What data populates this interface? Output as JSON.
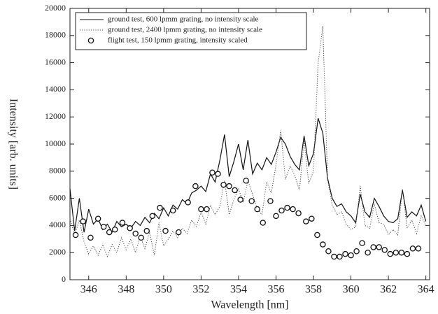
{
  "chart_data": {
    "type": "line",
    "xlabel": "Wavelength [nm]",
    "ylabel": "Intensity [arb. units]",
    "xlim": [
      345,
      364.2
    ],
    "ylim": [
      0,
      20000
    ],
    "xticks": [
      346,
      348,
      350,
      352,
      354,
      356,
      358,
      360,
      362,
      364
    ],
    "yticks": [
      0,
      2000,
      4000,
      6000,
      8000,
      10000,
      12000,
      14000,
      16000,
      18000,
      20000
    ],
    "legend": "upper left",
    "series": [
      {
        "name": "ground test, 600 lpmm grating, no intensity scale",
        "style": "solid",
        "color": "#111111",
        "x": [
          345,
          345.25,
          345.5,
          345.75,
          346,
          346.25,
          346.5,
          346.75,
          347,
          347.25,
          347.5,
          347.75,
          348,
          348.25,
          348.5,
          348.75,
          349,
          349.25,
          349.5,
          349.75,
          350,
          350.25,
          350.5,
          350.75,
          351,
          351.25,
          351.5,
          351.75,
          352,
          352.25,
          352.5,
          352.75,
          353,
          353.25,
          353.5,
          353.75,
          354,
          354.25,
          354.5,
          354.75,
          355,
          355.25,
          355.5,
          355.75,
          356,
          356.25,
          356.5,
          356.75,
          357,
          357.25,
          357.5,
          357.75,
          358,
          358.25,
          358.5,
          358.75,
          359,
          359.25,
          359.5,
          359.75,
          360,
          360.25,
          360.5,
          360.75,
          361,
          361.25,
          361.5,
          361.75,
          362,
          362.25,
          362.5,
          362.75,
          363,
          363.25,
          363.5,
          363.75,
          364
        ],
        "values": [
          6700,
          3600,
          6000,
          3500,
          5200,
          4100,
          4500,
          3700,
          4100,
          3500,
          4300,
          3900,
          4100,
          3800,
          4300,
          4000,
          4600,
          4200,
          4900,
          4500,
          5300,
          4700,
          5500,
          5200,
          5900,
          5600,
          6400,
          6600,
          6900,
          6500,
          7800,
          7200,
          8800,
          10700,
          7600,
          8700,
          10000,
          8100,
          10300,
          7800,
          8600,
          8100,
          9000,
          8500,
          9400,
          10500,
          10000,
          9100,
          8500,
          8100,
          10600,
          8400,
          9300,
          11900,
          10800,
          7500,
          6000,
          5400,
          5600,
          5000,
          4700,
          4200,
          6300,
          5000,
          4600,
          6000,
          5400,
          4700,
          4300,
          4200,
          4500,
          6600,
          4600,
          5000,
          4700,
          5500,
          4300
        ]
      },
      {
        "name": "ground test, 2400 lpmm grating, no intensity scale",
        "style": "dotted",
        "color": "#444444",
        "x": [
          345,
          345.25,
          345.5,
          345.75,
          346,
          346.25,
          346.5,
          346.75,
          347,
          347.25,
          347.5,
          347.75,
          348,
          348.25,
          348.5,
          348.75,
          349,
          349.25,
          349.5,
          349.75,
          350,
          350.25,
          350.5,
          350.75,
          351,
          351.25,
          351.5,
          351.75,
          352,
          352.25,
          352.5,
          352.75,
          353,
          353.25,
          353.5,
          353.75,
          354,
          354.25,
          354.5,
          354.75,
          355,
          355.25,
          355.5,
          355.75,
          356,
          356.25,
          356.5,
          356.75,
          357,
          357.25,
          357.5,
          357.75,
          358,
          358.25,
          358.5,
          358.75,
          359,
          359.25,
          359.5,
          359.75,
          360,
          360.25,
          360.5,
          360.75,
          361,
          361.25,
          361.5,
          361.75,
          362,
          362.25,
          362.5,
          362.75,
          363,
          363.25,
          363.5,
          363.75,
          364
        ],
        "values": [
          4500,
          3300,
          4400,
          2800,
          1900,
          2500,
          1800,
          2600,
          1700,
          2600,
          2000,
          3100,
          2200,
          3000,
          2000,
          3200,
          2300,
          3500,
          1800,
          4200,
          2500,
          3000,
          3600,
          3100,
          3800,
          3400,
          4400,
          3900,
          5000,
          4100,
          5500,
          4800,
          5400,
          7300,
          4800,
          5900,
          6700,
          5700,
          7300,
          6300,
          5200,
          4800,
          7200,
          6400,
          8500,
          11000,
          7400,
          8400,
          7700,
          6600,
          10200,
          7100,
          8000,
          16000,
          18700,
          7400,
          5500,
          4800,
          5000,
          4100,
          3700,
          3900,
          6900,
          4000,
          3800,
          5600,
          4200,
          4100,
          3300,
          3700,
          3300,
          6700,
          3800,
          4400,
          3400,
          4700,
          4000
        ]
      },
      {
        "name": "flight test, 150 lpmm grating, intensity scaled",
        "style": "circle",
        "color": "#111111",
        "x": [
          345.3,
          345.7,
          346.1,
          346.5,
          346.8,
          347.1,
          347.4,
          347.8,
          348.2,
          348.5,
          348.8,
          349.1,
          349.4,
          349.8,
          350.1,
          350.5,
          350.8,
          351.3,
          351.7,
          352,
          352.3,
          352.6,
          352.9,
          353.2,
          353.5,
          353.8,
          354.1,
          354.4,
          354.7,
          355,
          355.3,
          355.7,
          356,
          356.3,
          356.6,
          356.9,
          357.2,
          357.6,
          357.9,
          358.2,
          358.5,
          358.8,
          359.1,
          359.4,
          359.7,
          360,
          360.3,
          360.6,
          360.9,
          361.2,
          361.5,
          361.8,
          362.1,
          362.4,
          362.7,
          363,
          363.3,
          363.6
        ],
        "values": [
          3300,
          4300,
          3100,
          4500,
          3900,
          3500,
          3700,
          4200,
          3800,
          3400,
          3100,
          3600,
          4700,
          5300,
          3600,
          5100,
          3500,
          5700,
          6900,
          5200,
          5200,
          7900,
          7800,
          7000,
          6900,
          6600,
          5900,
          7300,
          5800,
          5200,
          4200,
          5800,
          4700,
          5100,
          5300,
          5200,
          4900,
          4300,
          4500,
          3300,
          2600,
          2100,
          1700,
          1700,
          1900,
          1800,
          2100,
          2700,
          2000,
          2400,
          2400,
          2200,
          1900,
          2000,
          2000,
          1900,
          2300,
          2300
        ]
      }
    ]
  }
}
